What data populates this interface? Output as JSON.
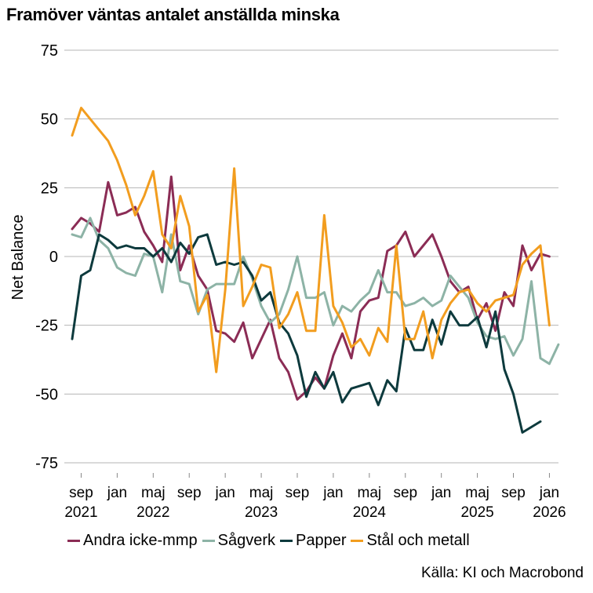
{
  "title": "Framöver väntas antalet anställda minska",
  "source": "Källa: KI och Macrobond",
  "chart_data": {
    "type": "line",
    "title": "Framöver väntas antalet anställda minska",
    "xlabel": "",
    "ylabel": "Net Balance",
    "ylim": [
      -75,
      75
    ],
    "yticks": [
      75,
      50,
      25,
      0,
      -25,
      -50,
      -75
    ],
    "ytick_labels": [
      "75",
      "50",
      "25",
      "0",
      "-25",
      "-50",
      "-75"
    ],
    "grid": true,
    "legend_position": "bottom",
    "x_start": "2021-08",
    "month_ticks": [
      {
        "i": 1,
        "label": "sep",
        "year": "2021"
      },
      {
        "i": 5,
        "label": "jan",
        "year": ""
      },
      {
        "i": 9,
        "label": "maj",
        "year": "2022"
      },
      {
        "i": 13,
        "label": "sep",
        "year": ""
      },
      {
        "i": 17,
        "label": "jan",
        "year": ""
      },
      {
        "i": 21,
        "label": "maj",
        "year": "2023"
      },
      {
        "i": 25,
        "label": "sep",
        "year": ""
      },
      {
        "i": 29,
        "label": "jan",
        "year": ""
      },
      {
        "i": 33,
        "label": "maj",
        "year": "2024"
      },
      {
        "i": 37,
        "label": "sep",
        "year": ""
      },
      {
        "i": 41,
        "label": "jan",
        "year": ""
      },
      {
        "i": 45,
        "label": "maj",
        "year": "2025"
      },
      {
        "i": 49,
        "label": "sep",
        "year": ""
      },
      {
        "i": 53,
        "label": "jan",
        "year": "2026"
      }
    ],
    "series": [
      {
        "name": "Andra icke-mmp",
        "color": "#8b2c55",
        "values": [
          10,
          14,
          12,
          9,
          27,
          15,
          16,
          18,
          9,
          4,
          -2,
          29,
          -5,
          4,
          -7,
          -12,
          -27,
          -28,
          -31,
          -24,
          -37,
          -30,
          -23,
          -37,
          -42,
          -52,
          -49,
          -44,
          -48,
          -36,
          -28,
          -37,
          -20,
          -16,
          -15,
          2,
          4,
          9,
          0,
          4,
          8,
          0,
          -9,
          -13,
          -11,
          -23,
          -17,
          -27,
          -13,
          -18,
          4,
          -5,
          1,
          0
        ]
      },
      {
        "name": "Sågverk",
        "color": "#8db3a6",
        "values": [
          8,
          7,
          14,
          6,
          3,
          -4,
          -6,
          -7,
          1,
          0,
          -13,
          8,
          -9,
          -10,
          -21,
          -12,
          -10,
          -10,
          -10,
          0,
          -8,
          -18,
          -24,
          -21,
          -12,
          0,
          -15,
          -15,
          -13,
          -25,
          -18,
          -20,
          -16,
          -13,
          -5,
          -13,
          -13,
          -18,
          -17,
          -15,
          -18,
          -16,
          -7,
          -11,
          -15,
          -24,
          -29,
          -30,
          -29,
          -36,
          -30,
          -9,
          -37,
          -39,
          -32
        ]
      },
      {
        "name": "Papper",
        "color": "#0d3a3d",
        "values": [
          -30,
          -7,
          -5,
          8,
          6,
          3,
          4,
          3,
          3,
          0,
          3,
          -2,
          5,
          1,
          7,
          8,
          -3,
          -2,
          -3,
          -2,
          -7,
          -16,
          -13,
          -24,
          -28,
          -36,
          -51,
          -42,
          -48,
          -42,
          -53,
          -48,
          -47,
          -46,
          -54,
          -45,
          -49,
          -26,
          -34,
          -34,
          -23,
          -32,
          -20,
          -25,
          -25,
          -22,
          -33,
          -20,
          -41,
          -50,
          -64,
          -62,
          -60
        ]
      },
      {
        "name": "Stål och metall",
        "color": "#f29d1f",
        "values": [
          44,
          54,
          50,
          46,
          42,
          35,
          26,
          15,
          22,
          31,
          8,
          3,
          22,
          11,
          -20,
          -14,
          -42,
          -12,
          32,
          -18,
          -11,
          -3,
          -4,
          -26,
          -21,
          -13,
          -27,
          -27,
          15,
          -18,
          -24,
          -33,
          -30,
          -36,
          -26,
          -31,
          4,
          -30,
          -30,
          -20,
          -37,
          -23,
          -17,
          -13,
          -12,
          -17,
          -20,
          -16,
          -15,
          -14,
          -3,
          1,
          4,
          -25
        ]
      }
    ]
  }
}
